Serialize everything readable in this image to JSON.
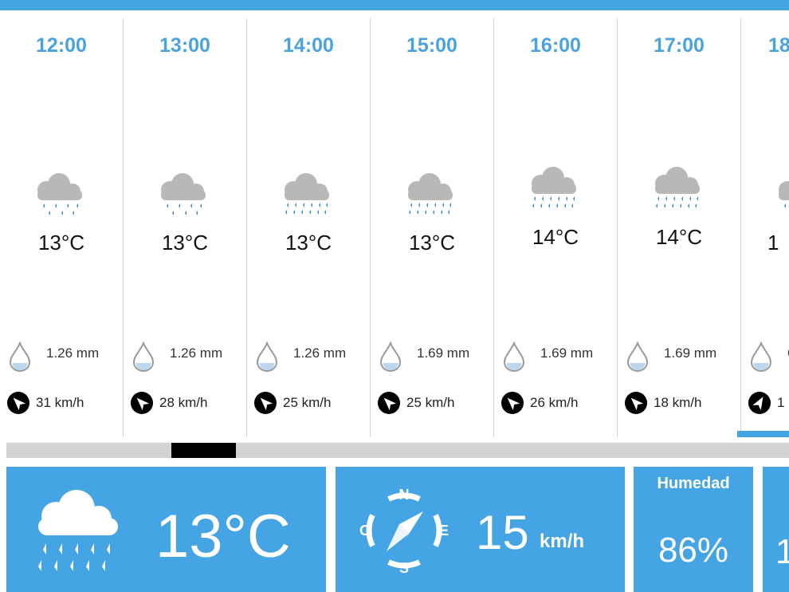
{
  "hours": [
    {
      "time": "12:00",
      "temp": "13°C",
      "precip": "1.26 mm",
      "wind": "31 km/h",
      "rain": "light",
      "wind_rot": -45
    },
    {
      "time": "13:00",
      "temp": "13°C",
      "precip": "1.26 mm",
      "wind": "28 km/h",
      "rain": "light",
      "wind_rot": -45
    },
    {
      "time": "14:00",
      "temp": "13°C",
      "precip": "1.26 mm",
      "wind": "25 km/h",
      "rain": "heavy",
      "wind_rot": -45
    },
    {
      "time": "15:00",
      "temp": "13°C",
      "precip": "1.69 mm",
      "wind": "25 km/h",
      "rain": "heavy",
      "wind_rot": -45
    },
    {
      "time": "16:00",
      "temp": "14°C",
      "precip": "1.69 mm",
      "wind": "26 km/h",
      "rain": "heavy",
      "wind_rot": -45
    },
    {
      "time": "17:00",
      "temp": "14°C",
      "precip": "1.69 mm",
      "wind": "18 km/h",
      "rain": "heavy",
      "wind_rot": -45
    },
    {
      "time": "18",
      "temp": "1",
      "precip": "6",
      "wind": "1",
      "rain": "light",
      "wind_rot": 30
    }
  ],
  "current": {
    "temp": "13°C",
    "wind_speed": "15",
    "wind_unit": "km/h",
    "compass": {
      "n": "N",
      "e": "E",
      "s": "S",
      "w": "O"
    },
    "humidity_label": "Humedad",
    "humidity_value": "86%",
    "next_value": "1"
  },
  "colors": {
    "accent": "#45a4e3",
    "time_text": "#4aa3df",
    "scroll_track": "#d3d3d3",
    "scroll_thumb": "#000000"
  }
}
